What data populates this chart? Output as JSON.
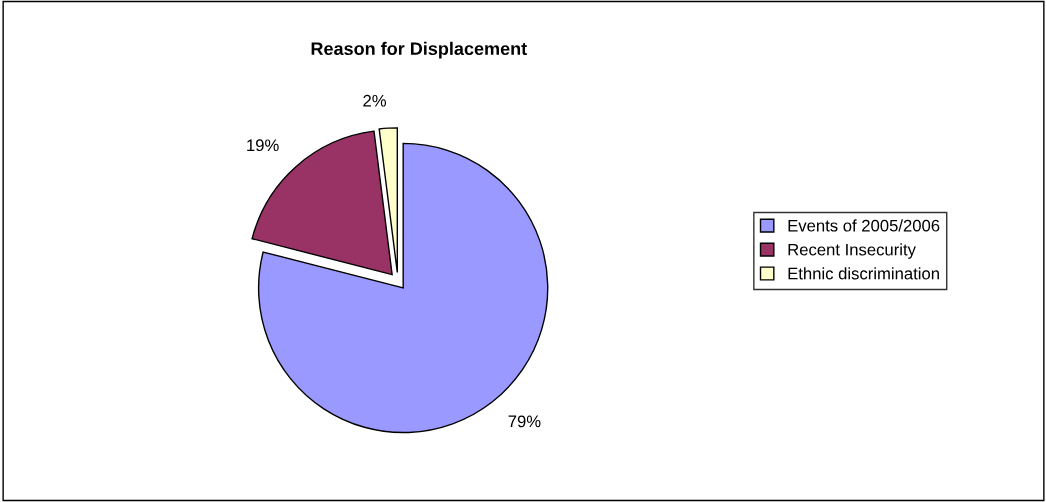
{
  "chart_data": {
    "type": "pie",
    "title": "Reason for Displacement",
    "categories": [
      "Events of 2005/2006",
      "Recent Insecurity",
      "Ethnic discrimination"
    ],
    "values": [
      79,
      19,
      2
    ],
    "colors": [
      "#9999ff",
      "#993366",
      "#ffffcc"
    ],
    "value_labels": [
      "79%",
      "19%",
      "2%"
    ],
    "legend": "right"
  }
}
